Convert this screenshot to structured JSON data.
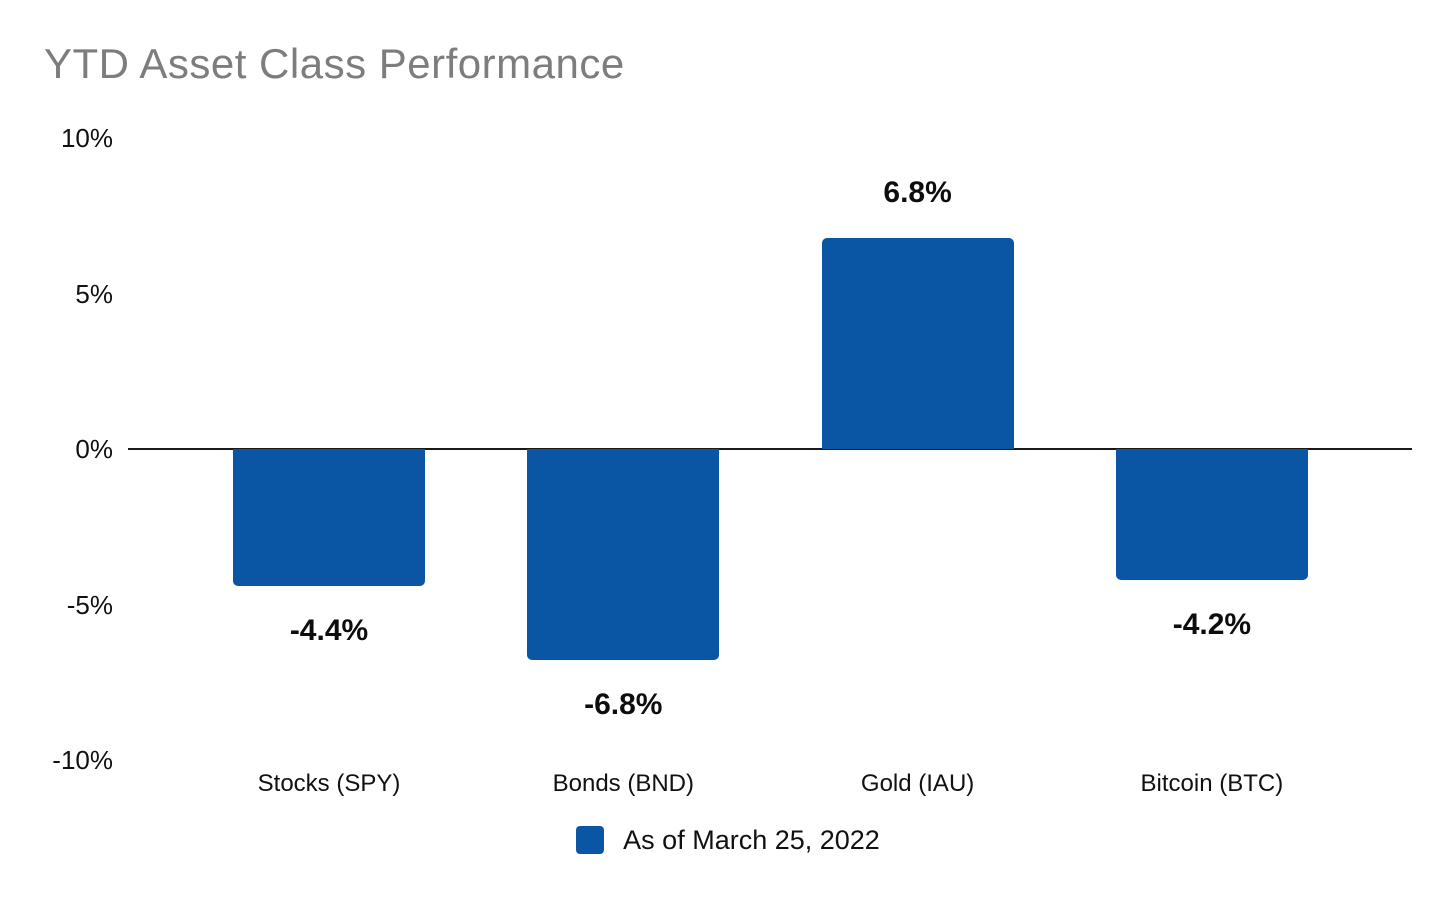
{
  "title": "YTD Asset Class Performance",
  "legend": {
    "label": "As of March 25, 2022"
  },
  "colors": {
    "bar": "#0b55a5",
    "title_text": "#7d7d7d",
    "axis_line": "#1a1a1a",
    "label_text": "#111111"
  },
  "chart_data": {
    "type": "bar",
    "title": "YTD Asset Class Performance",
    "categories": [
      "Stocks (SPY)",
      "Bonds (BND)",
      "Gold (IAU)",
      "Bitcoin (BTC)"
    ],
    "values": [
      -4.4,
      -6.8,
      6.8,
      -4.2
    ],
    "data_labels": [
      "-4.4%",
      "-6.8%",
      "6.8%",
      "-4.2%"
    ],
    "series_name": "As of March 25, 2022",
    "legend_position": "bottom",
    "xlabel": "",
    "ylabel": "",
    "ylim": [
      -10,
      10
    ],
    "yticks": [
      {
        "value": 10,
        "label": "10%"
      },
      {
        "value": 5,
        "label": "5%"
      },
      {
        "value": 0,
        "label": "0%"
      },
      {
        "value": -5,
        "label": "-5%"
      },
      {
        "value": -10,
        "label": "-10%"
      }
    ],
    "grid": false,
    "bar_color": "#0b55a5"
  }
}
